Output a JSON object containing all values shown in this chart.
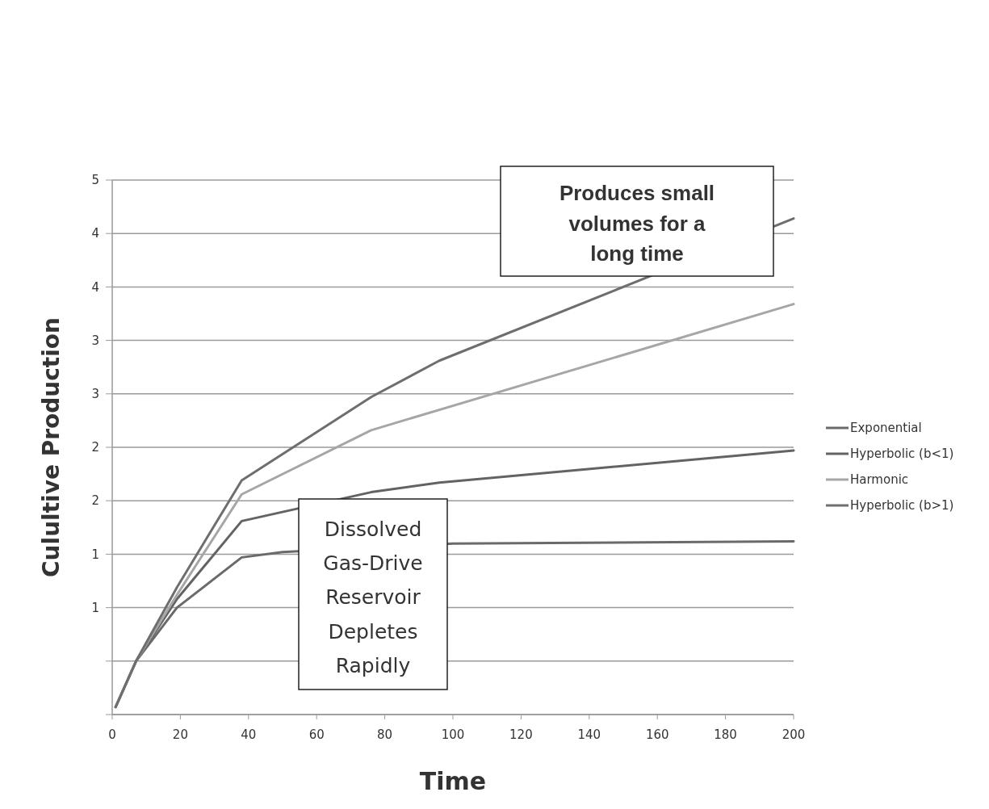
{
  "chart_data": {
    "type": "line",
    "xlabel": "Time",
    "ylabel": "Culultive Production",
    "xlim": [
      0,
      200
    ],
    "xticks": [
      0,
      20,
      40,
      60,
      80,
      100,
      120,
      140,
      160,
      180,
      200
    ],
    "ylim": [
      0,
      5
    ],
    "yticks": [
      {
        "value": 0,
        "label": null
      },
      {
        "value": 0.5,
        "label": null
      },
      {
        "value": 1,
        "label": "1"
      },
      {
        "value": 1.5,
        "label": "1"
      },
      {
        "value": 2,
        "label": "2"
      },
      {
        "value": 2.5,
        "label": "2"
      },
      {
        "value": 3,
        "label": "3"
      },
      {
        "value": 3.5,
        "label": "3"
      },
      {
        "value": 4,
        "label": "4"
      },
      {
        "value": 4.5,
        "label": "4"
      },
      {
        "value": 5,
        "label": "5"
      }
    ],
    "grid": "y",
    "legend": "right",
    "series": [
      {
        "name": "Exponential",
        "color": "#6a6a6a",
        "x": [
          1,
          7,
          19,
          38,
          50,
          100,
          200
        ],
        "values": [
          0.07,
          0.5,
          1.0,
          1.47,
          1.52,
          1.6,
          1.62
        ]
      },
      {
        "name": "Hyperbolic (b<1)",
        "color": "#636363",
        "x": [
          1,
          7,
          19,
          38,
          76,
          96,
          200
        ],
        "values": [
          0.07,
          0.5,
          1.08,
          1.81,
          2.08,
          2.17,
          2.47
        ]
      },
      {
        "name": "Harmonic",
        "color": "#a6a6a6",
        "x": [
          1,
          7,
          19,
          38,
          76,
          200
        ],
        "values": [
          0.07,
          0.5,
          1.12,
          2.06,
          2.66,
          3.84
        ]
      },
      {
        "name": "Hyperbolic (b>1)",
        "color": "#6e6e6e",
        "x": [
          1,
          7,
          19,
          38,
          76,
          96,
          200
        ],
        "values": [
          0.07,
          0.5,
          1.19,
          2.19,
          2.97,
          3.31,
          4.64
        ]
      }
    ],
    "annotations": [
      "Produces small volumes for a long time",
      "Dissolved Gas-Drive Reservoir Depletes Rapidly"
    ]
  }
}
